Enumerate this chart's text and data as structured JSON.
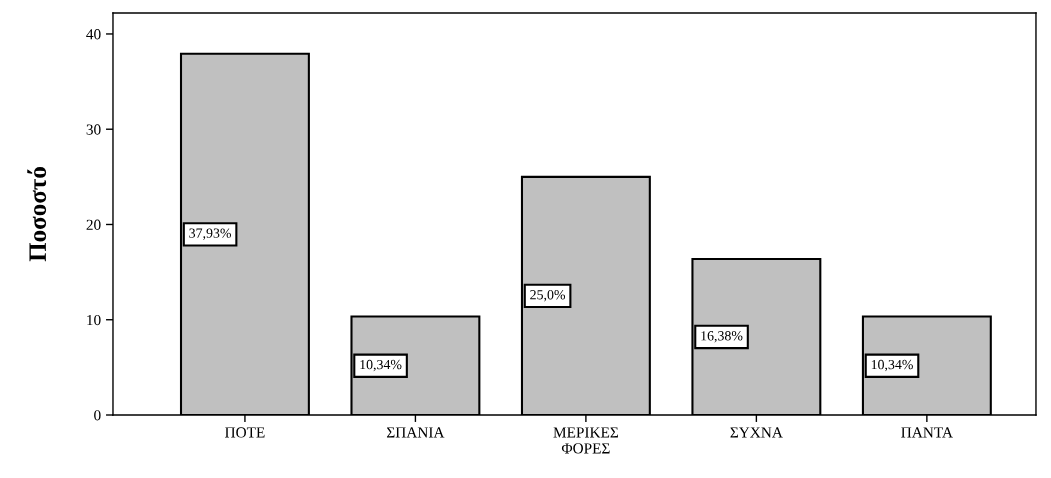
{
  "chart_data": {
    "type": "bar",
    "ylabel": "Ποσοστό",
    "categories": [
      "ΠΟΤΕ",
      "ΣΠΑΝΙΑ",
      "ΜΕΡΙΚΕΣ\nΦΟΡΕΣ",
      "ΣΥΧΝΑ",
      "ΠΑΝΤΑ"
    ],
    "values": [
      37.93,
      10.34,
      25.0,
      16.38,
      10.34
    ],
    "value_labels": [
      "37,93%",
      "10,34%",
      "25,0%",
      "16,38%",
      "10,34%"
    ],
    "color": "#c0c0c0",
    "ylim": [
      0,
      42.2
    ],
    "yticks": [
      0,
      10,
      20,
      30,
      40
    ],
    "grid": false
  }
}
